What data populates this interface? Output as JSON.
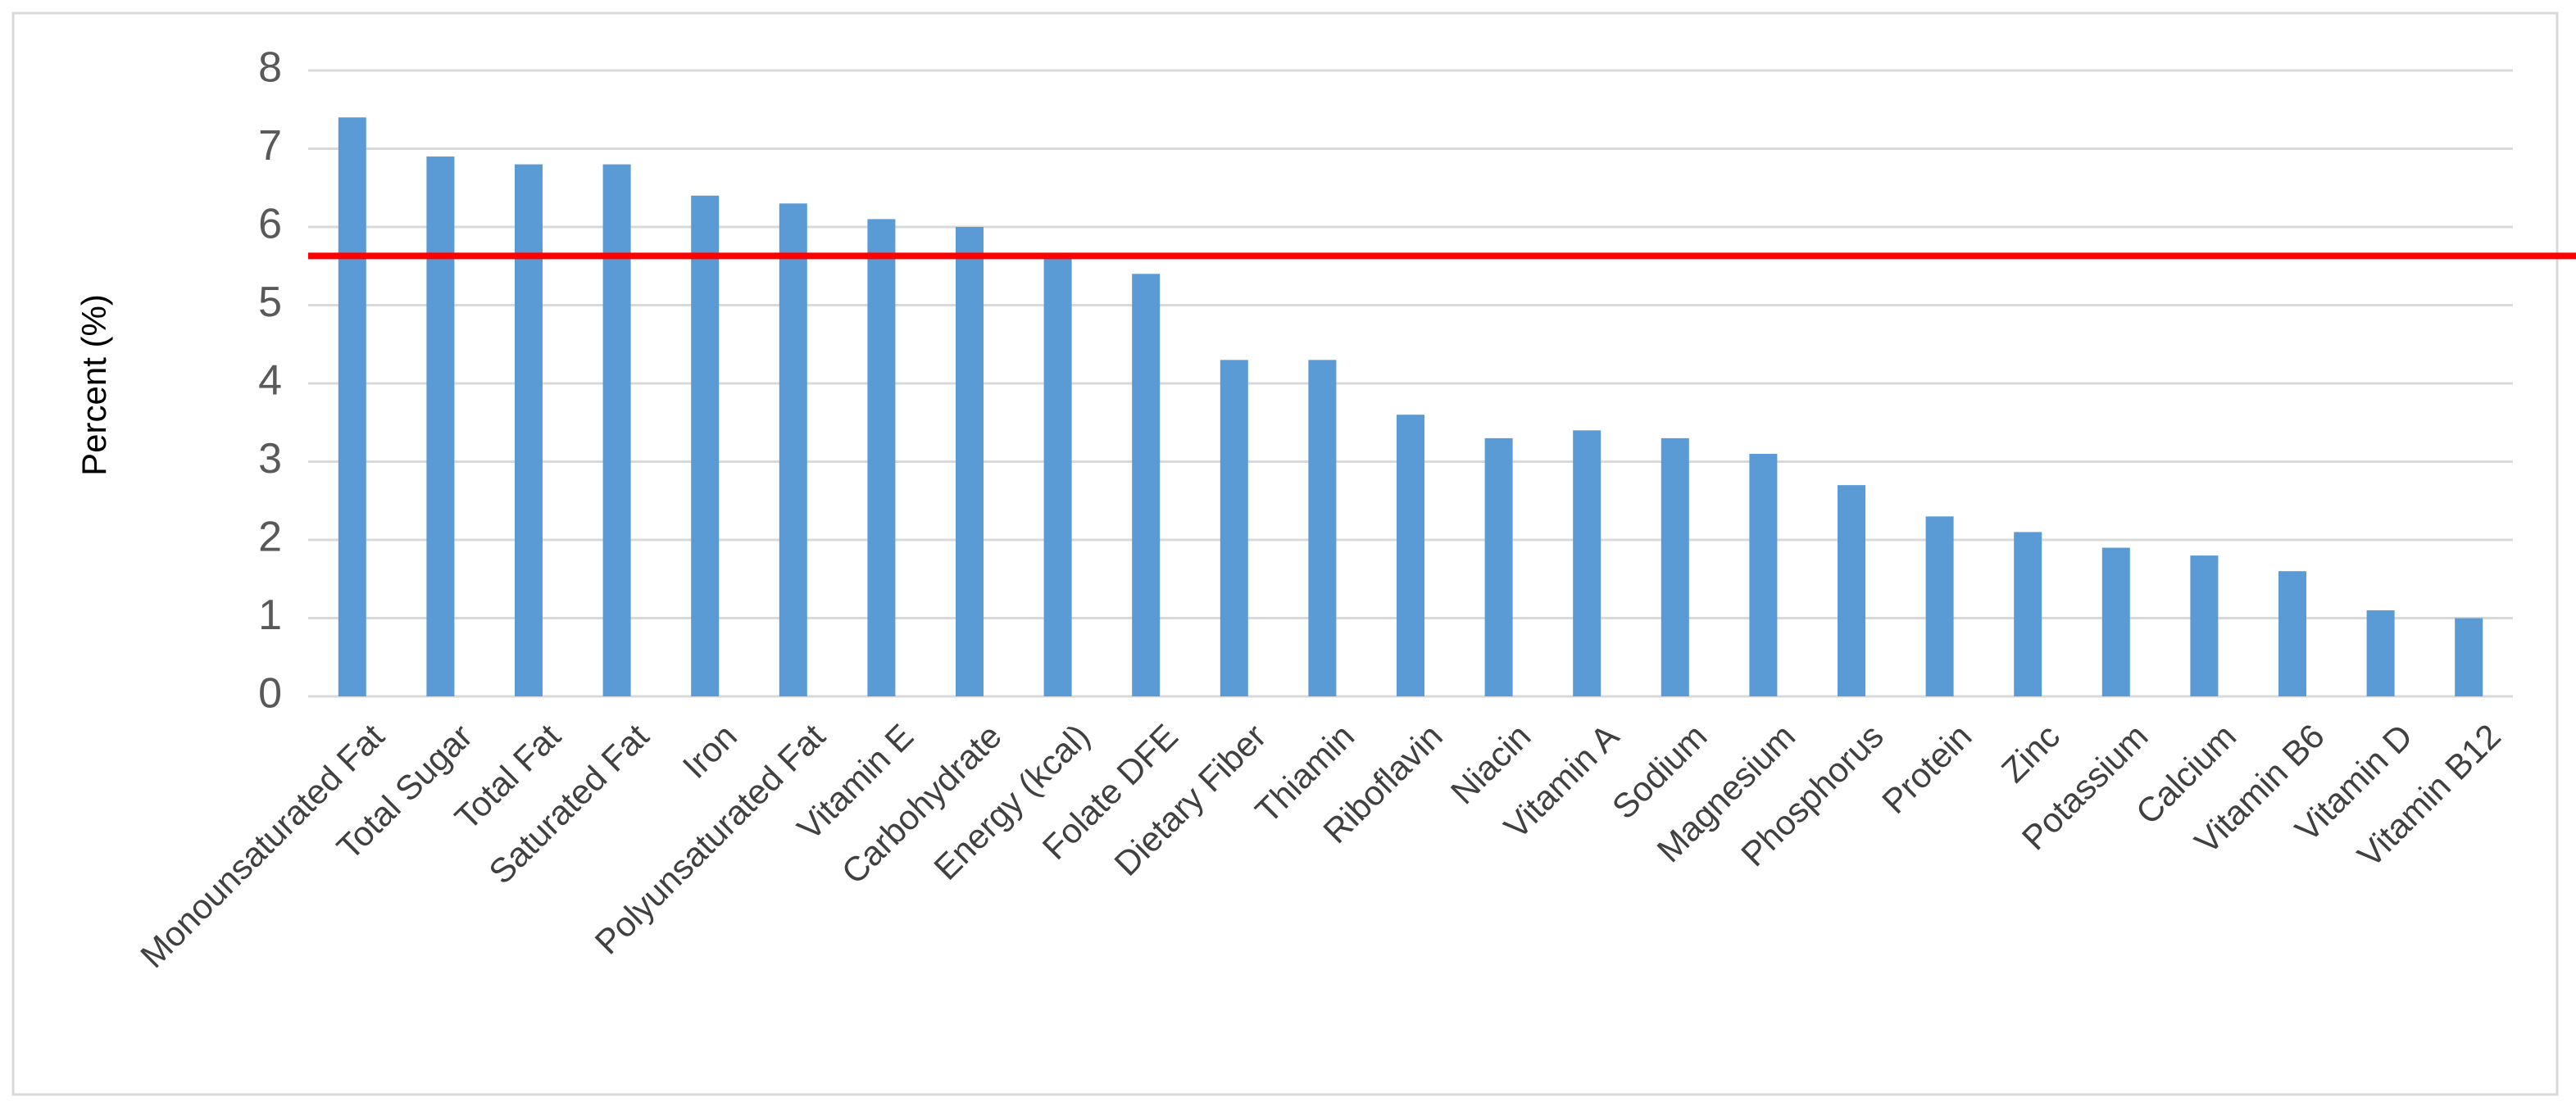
{
  "chart_data": {
    "type": "bar",
    "y_label": "Percent (%)",
    "categories": [
      "Monounsaturated Fat",
      "Total Sugar",
      "Total Fat",
      "Saturated Fat",
      "Iron",
      "Polyunsaturated Fat",
      "Vitamin E",
      "Carbohydrate",
      "Energy (kcal)",
      "Folate DFE",
      "Dietary Fiber",
      "Thiamin",
      "Riboflavin",
      "Niacin",
      "Vitamin A",
      "Sodium",
      "Magnesium",
      "Phosphorus",
      "Protein",
      "Zinc",
      "Potassium",
      "Calcium",
      "Vitamin B6",
      "Vitamin D",
      "Vitamin B12"
    ],
    "values": [
      7.4,
      6.9,
      6.8,
      6.8,
      6.4,
      6.3,
      6.1,
      6.0,
      5.6,
      5.4,
      4.3,
      4.3,
      3.6,
      3.3,
      3.4,
      3.3,
      3.1,
      2.7,
      2.3,
      2.1,
      1.9,
      1.8,
      1.6,
      1.1,
      1.0
    ],
    "color": "#5b9bd5",
    "reference_line": {
      "value": 5.63,
      "color": "#ff0000"
    },
    "ylim": [
      0,
      8
    ],
    "yticks": [
      0,
      1,
      2,
      3,
      4,
      5,
      6,
      7,
      8
    ],
    "grid": true
  }
}
